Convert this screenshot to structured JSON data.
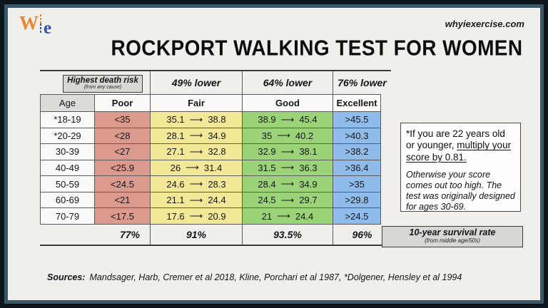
{
  "site": "whyiexercise.com",
  "logo": {
    "w": "W",
    "e": "e"
  },
  "title": "ROCKPORT WALKING TEST FOR WOMEN",
  "colors": {
    "slide_bg": "#f0efec",
    "poor": "#dc9a8e",
    "fair": "#f2e897",
    "good": "#9ad378",
    "excellent": "#8fbcea",
    "header_gray": "#dcdbd8",
    "accent_orange": "#e8872e",
    "accent_blue": "#3853a0"
  },
  "chart_data": {
    "type": "table",
    "title": "ROCKPORT WALKING TEST FOR WOMEN",
    "risk_header": {
      "box_label": "Highest death risk",
      "box_sub": "(from any cause)",
      "cols": [
        "49% lower",
        "64% lower",
        "76% lower"
      ]
    },
    "columns": [
      "Age",
      "Poor",
      "Fair",
      "Good",
      "Excellent"
    ],
    "rows": [
      {
        "age": "*18-19",
        "poor": "<35",
        "fair_low": "35.1",
        "fair_high": "38.8",
        "good_low": "38.9",
        "good_high": "45.4",
        "excellent": ">45.5"
      },
      {
        "age": "*20-29",
        "poor": "<28",
        "fair_low": "28.1",
        "fair_high": "34.9",
        "good_low": "35",
        "good_high": "40.2",
        "excellent": ">40.3"
      },
      {
        "age": "30-39",
        "poor": "<27",
        "fair_low": "27.1",
        "fair_high": "32.8",
        "good_low": "32.9",
        "good_high": "38.1",
        "excellent": ">38.2"
      },
      {
        "age": "40-49",
        "poor": "<25.9",
        "fair_low": "26",
        "fair_high": "31.4",
        "good_low": "31.5",
        "good_high": "36.3",
        "excellent": ">36.4"
      },
      {
        "age": "50-59",
        "poor": "<24.5",
        "fair_low": "24.6",
        "fair_high": "28.3",
        "good_low": "28.4",
        "good_high": "34.9",
        "excellent": ">35"
      },
      {
        "age": "60-69",
        "poor": "<21",
        "fair_low": "21.1",
        "fair_high": "24.4",
        "good_low": "24.5",
        "good_high": "29.7",
        "excellent": ">29.8"
      },
      {
        "age": "70-79",
        "poor": "<17.5",
        "fair_low": "17.6",
        "fair_high": "20.9",
        "good_low": "21",
        "good_high": "24.4",
        "excellent": ">24.5"
      }
    ],
    "survival": {
      "values": [
        "77%",
        "91%",
        "93.5%",
        "96%"
      ],
      "label": "10-year survival rate",
      "sub": "(from middle age/50s)"
    }
  },
  "note": {
    "text_plain": "*If you are 22 years old or younger, ",
    "text_underlined": "multiply your score by 0.81.",
    "text_italic": "Otherwise your score comes out too high.  The test was originally designed for ages 30-69."
  },
  "sources": {
    "label": "Sources:",
    "text": "Mandsager, Harb, Cremer et al 2018, Kline, Porchari et al 1987, *Dolgener, Hensley et al 1994"
  }
}
